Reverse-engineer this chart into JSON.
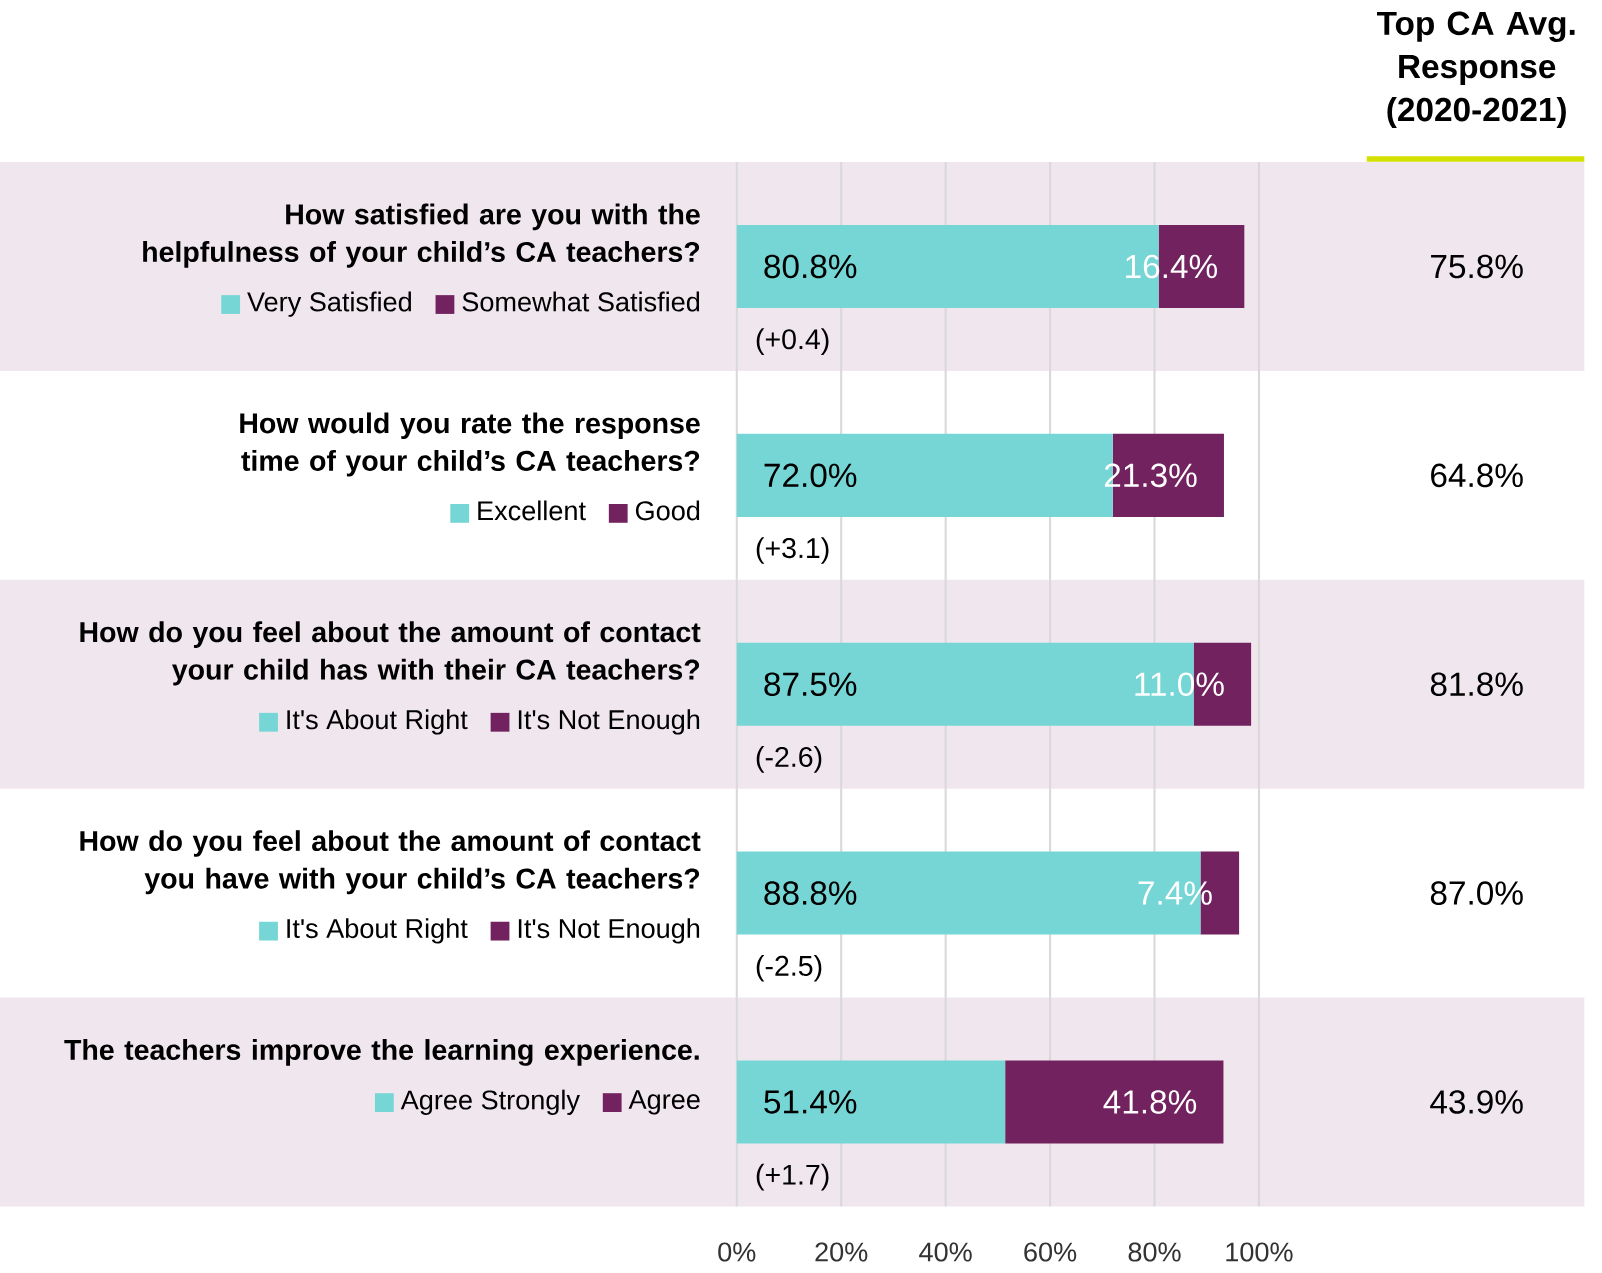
{
  "chart_data": [
    {
      "type": "bar",
      "orientation": "horizontal",
      "stacked": true,
      "categories": [
        "How satisfied are you with the helpfulness of your child’s CA teachers?"
      ],
      "series": [
        {
          "name": "Very Satisfied",
          "color": "#76d6d6",
          "values": [
            80.8
          ],
          "value_labels": [
            "80.8%"
          ]
        },
        {
          "name": "Somewhat Satisfied",
          "color": "#72235f",
          "values": [
            16.4
          ],
          "value_labels": [
            "16.4%"
          ]
        }
      ],
      "xlim": [
        0,
        100
      ],
      "xticks": [
        {
          "value": 0,
          "label": null
        },
        {
          "value": 20,
          "label": null
        },
        {
          "value": 40,
          "label": null
        },
        {
          "value": 60,
          "label": null
        },
        {
          "value": 80,
          "label": null
        },
        {
          "value": 100,
          "label": null
        }
      ],
      "grid": "x",
      "legend": "left",
      "tick_labels": "y",
      "annotations": [
        "(+0.4)",
        "75.8%",
        "Top CA Avg. Response (2020-2021)"
      ]
    },
    {
      "type": "bar",
      "orientation": "horizontal",
      "stacked": true,
      "categories": [
        "How would you rate the response time of your child’s CA teachers?"
      ],
      "series": [
        {
          "name": "Excellent",
          "color": "#76d6d6",
          "values": [
            72.0
          ],
          "value_labels": [
            "72.0%"
          ]
        },
        {
          "name": "Good",
          "color": "#72235f",
          "values": [
            21.3
          ],
          "value_labels": [
            "21.3%"
          ]
        }
      ],
      "xlim": [
        0,
        100
      ],
      "xticks": [
        {
          "value": 0,
          "label": null
        },
        {
          "value": 20,
          "label": null
        },
        {
          "value": 40,
          "label": null
        },
        {
          "value": 60,
          "label": null
        },
        {
          "value": 80,
          "label": null
        },
        {
          "value": 100,
          "label": null
        }
      ],
      "grid": "x",
      "legend": "left",
      "tick_labels": "y",
      "annotations": [
        "(+3.1)",
        "64.8%"
      ]
    },
    {
      "type": "bar",
      "orientation": "horizontal",
      "stacked": true,
      "categories": [
        "How do you feel about the amount of contact your child has with their CA teachers?"
      ],
      "series": [
        {
          "name": "It's About Right",
          "color": "#76d6d6",
          "values": [
            87.5
          ],
          "value_labels": [
            "87.5%"
          ]
        },
        {
          "name": "It's Not Enough",
          "color": "#72235f",
          "values": [
            11.0
          ],
          "value_labels": [
            "11.0%"
          ]
        }
      ],
      "xlim": [
        0,
        100
      ],
      "xticks": [
        {
          "value": 0,
          "label": null
        },
        {
          "value": 20,
          "label": null
        },
        {
          "value": 40,
          "label": null
        },
        {
          "value": 60,
          "label": null
        },
        {
          "value": 80,
          "label": null
        },
        {
          "value": 100,
          "label": null
        }
      ],
      "grid": "x",
      "legend": "left",
      "tick_labels": "y",
      "annotations": [
        "(-2.6)",
        "81.8%"
      ]
    },
    {
      "type": "bar",
      "orientation": "horizontal",
      "stacked": true,
      "categories": [
        "How do you feel about the amount of contact you have with your child’s CA teachers?"
      ],
      "series": [
        {
          "name": "It's About Right",
          "color": "#76d6d6",
          "values": [
            88.8
          ],
          "value_labels": [
            "88.8%"
          ]
        },
        {
          "name": "It's Not Enough",
          "color": "#72235f",
          "values": [
            7.4
          ],
          "value_labels": [
            "7.4%"
          ]
        }
      ],
      "xlim": [
        0,
        100
      ],
      "xticks": [
        {
          "value": 0,
          "label": null
        },
        {
          "value": 20,
          "label": null
        },
        {
          "value": 40,
          "label": null
        },
        {
          "value": 60,
          "label": null
        },
        {
          "value": 80,
          "label": null
        },
        {
          "value": 100,
          "label": null
        }
      ],
      "grid": "x",
      "legend": "left",
      "tick_labels": "y",
      "annotations": [
        "(-2.5)",
        "87.0%"
      ]
    },
    {
      "type": "bar",
      "orientation": "horizontal",
      "stacked": true,
      "categories": [
        "The teachers improve the learning experience."
      ],
      "series": [
        {
          "name": "Agree Strongly",
          "color": "#76d6d6",
          "values": [
            51.4
          ],
          "value_labels": [
            "51.4%"
          ]
        },
        {
          "name": "Agree",
          "color": "#72235f",
          "values": [
            41.8
          ],
          "value_labels": [
            "41.8%"
          ]
        }
      ],
      "xlim": [
        0,
        100
      ],
      "xticks": [
        {
          "value": 0,
          "label": "0%"
        },
        {
          "value": 20,
          "label": "20%"
        },
        {
          "value": 40,
          "label": "40%"
        },
        {
          "value": 60,
          "label": "60%"
        },
        {
          "value": 80,
          "label": "80%"
        },
        {
          "value": 100,
          "label": "100%"
        }
      ],
      "grid": "x",
      "legend": "left",
      "annotations": [
        "(+1.7)",
        "43.9%"
      ]
    }
  ]
}
